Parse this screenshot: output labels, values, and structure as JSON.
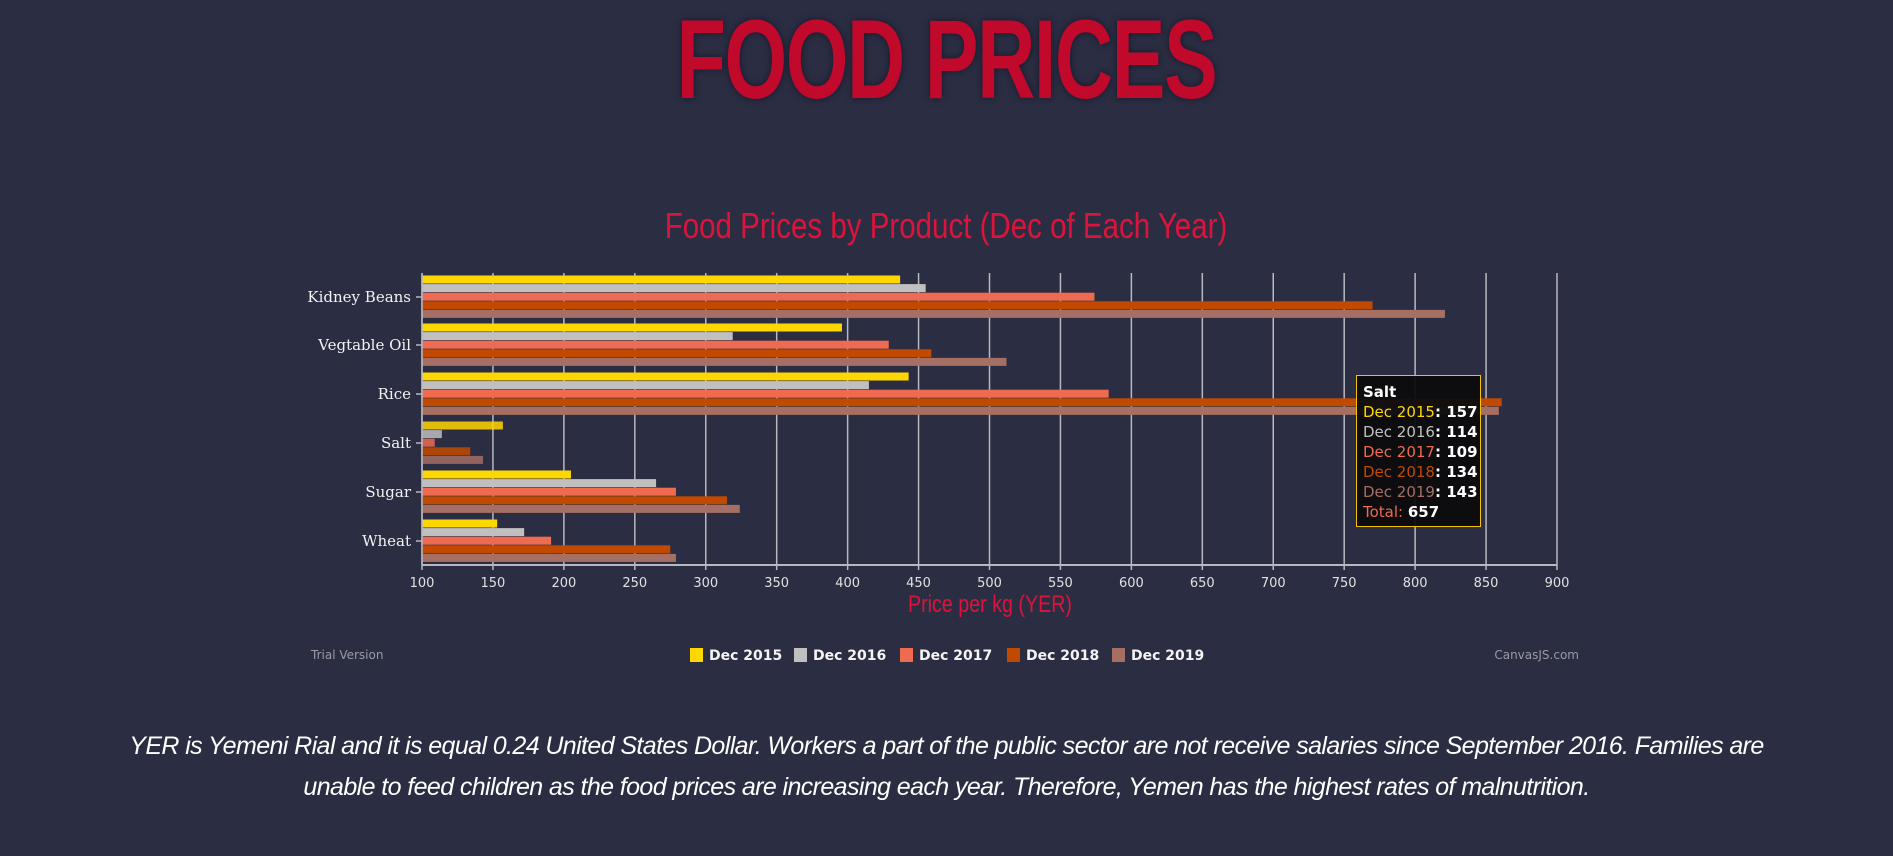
{
  "header": {
    "title": "FOOD PRICES"
  },
  "chart_data": {
    "type": "bar",
    "orientation": "horizontal",
    "title": "Food Prices by Product (Dec of Each Year)",
    "xlabel": "Price per kg (YER)",
    "ylabel": "",
    "xlim": [
      100,
      900
    ],
    "x_ticks": [
      100,
      150,
      200,
      250,
      300,
      350,
      400,
      450,
      500,
      550,
      600,
      650,
      700,
      750,
      800,
      850,
      900
    ],
    "grid": true,
    "legend_position": "bottom-center",
    "categories": [
      "Kidney Beans",
      "Vegtable Oil",
      "Rice",
      "Salt",
      "Sugar",
      "Wheat"
    ],
    "series": [
      {
        "name": "Dec 2015",
        "color": "#ffd700",
        "values": [
          437,
          396,
          443,
          157,
          205,
          153
        ]
      },
      {
        "name": "Dec 2016",
        "color": "#c0c0c0",
        "values": [
          455,
          319,
          415,
          114,
          265,
          172
        ]
      },
      {
        "name": "Dec 2017",
        "color": "#ee6a50",
        "values": [
          574,
          429,
          584,
          109,
          279,
          191
        ]
      },
      {
        "name": "Dec 2018",
        "color": "#c24a00",
        "values": [
          770,
          459,
          861,
          134,
          315,
          275
        ]
      },
      {
        "name": "Dec 2019",
        "color": "#a56f63",
        "values": [
          821,
          512,
          859,
          143,
          324,
          279
        ]
      }
    ],
    "highlighted_category": "Salt"
  },
  "tooltip": {
    "title": "Salt",
    "rows": [
      {
        "label": "Dec 2015",
        "value": "157",
        "color": "#ffd700"
      },
      {
        "label": "Dec 2016",
        "value": "114",
        "color": "#c0c0c0"
      },
      {
        "label": "Dec 2017",
        "value": "109",
        "color": "#ee6a50"
      },
      {
        "label": "Dec 2018",
        "value": "134",
        "color": "#c24a00"
      },
      {
        "label": "Dec 2019",
        "value": "143",
        "color": "#a56f63"
      }
    ],
    "total_label": "Total:",
    "total_value": "657",
    "total_color": "#ee6a50"
  },
  "watermarks": {
    "left": "Trial Version",
    "right": "CanvasJS.com"
  },
  "colors": {
    "background": "#2b2d42",
    "accent": "#c1092b",
    "chart_title": "#dc143c"
  },
  "description": "YER is Yemeni Rial and it is equal 0.24 United States Dollar. Workers a part of the public sector are not receive salaries since September 2016. Families are unable to feed children as the food prices are increasing each year. Therefore, Yemen has the highest rates of malnutrition."
}
